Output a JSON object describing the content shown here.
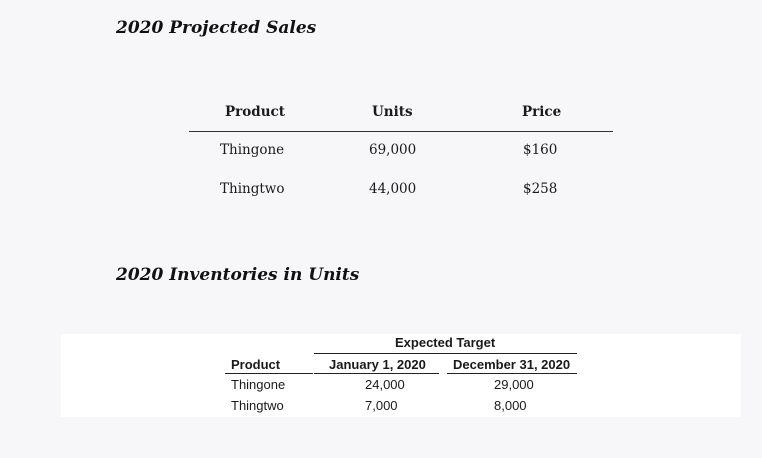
{
  "sales": {
    "title": "2020 Projected Sales",
    "headers": {
      "product": "Product",
      "units": "Units",
      "price": "Price"
    },
    "rows": [
      {
        "product": "Thingone",
        "units": "69,000",
        "price": "$160"
      },
      {
        "product": "Thingtwo",
        "units": "44,000",
        "price": "$258"
      }
    ]
  },
  "inventory": {
    "title": "2020 Inventories in Units",
    "group_header": "Expected Target",
    "headers": {
      "product": "Product",
      "jan": "January 1, 2020",
      "dec": "December 31, 2020"
    },
    "rows": [
      {
        "product": "Thingone",
        "jan": "24,000",
        "dec": "29,000"
      },
      {
        "product": "Thingtwo",
        "jan": "7,000",
        "dec": "8,000"
      }
    ]
  }
}
